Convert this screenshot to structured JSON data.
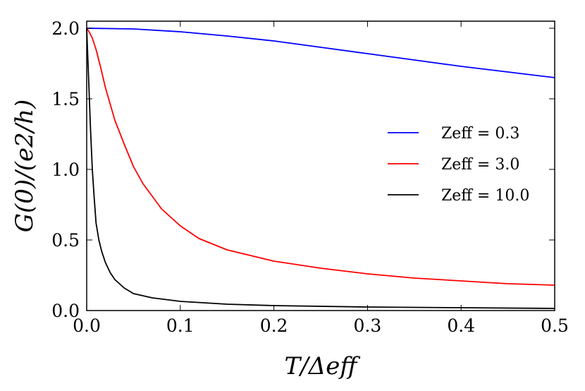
{
  "chart_data": {
    "type": "line",
    "xlabel": "T/Δeff",
    "ylabel": "G(0)/(e2/h)",
    "xlim": [
      0.0,
      0.5
    ],
    "ylim": [
      0.0,
      2.05
    ],
    "x_ticks": [
      "0.0",
      "0.1",
      "0.2",
      "0.3",
      "0.4",
      "0.5"
    ],
    "y_ticks": [
      "0.0",
      "0.5",
      "1.0",
      "1.5",
      "2.0"
    ],
    "grid": false,
    "legend_position": "center-right",
    "series": [
      {
        "name": "Zeff = 0.3",
        "color": "#0000ff",
        "points": [
          [
            0.0,
            2.0
          ],
          [
            0.05,
            1.995
          ],
          [
            0.1,
            1.975
          ],
          [
            0.15,
            1.945
          ],
          [
            0.2,
            1.91
          ],
          [
            0.25,
            1.865
          ],
          [
            0.3,
            1.82
          ],
          [
            0.35,
            1.775
          ],
          [
            0.4,
            1.73
          ],
          [
            0.45,
            1.69
          ],
          [
            0.5,
            1.65
          ]
        ]
      },
      {
        "name": "Zeff = 3.0",
        "color": "#ff0000",
        "points": [
          [
            0.0,
            2.0
          ],
          [
            0.003,
            1.97
          ],
          [
            0.006,
            1.93
          ],
          [
            0.01,
            1.85
          ],
          [
            0.015,
            1.72
          ],
          [
            0.02,
            1.58
          ],
          [
            0.03,
            1.35
          ],
          [
            0.04,
            1.18
          ],
          [
            0.05,
            1.02
          ],
          [
            0.06,
            0.9
          ],
          [
            0.08,
            0.72
          ],
          [
            0.1,
            0.6
          ],
          [
            0.12,
            0.51
          ],
          [
            0.15,
            0.43
          ],
          [
            0.2,
            0.35
          ],
          [
            0.25,
            0.3
          ],
          [
            0.3,
            0.26
          ],
          [
            0.35,
            0.23
          ],
          [
            0.4,
            0.21
          ],
          [
            0.45,
            0.19
          ],
          [
            0.5,
            0.18
          ]
        ]
      },
      {
        "name": "Zeff = 10.0",
        "color": "#000000",
        "points": [
          [
            0.0,
            2.0
          ],
          [
            0.002,
            1.65
          ],
          [
            0.004,
            1.3
          ],
          [
            0.006,
            1.0
          ],
          [
            0.008,
            0.8
          ],
          [
            0.01,
            0.62
          ],
          [
            0.013,
            0.5
          ],
          [
            0.016,
            0.42
          ],
          [
            0.02,
            0.34
          ],
          [
            0.025,
            0.27
          ],
          [
            0.03,
            0.22
          ],
          [
            0.04,
            0.16
          ],
          [
            0.05,
            0.12
          ],
          [
            0.07,
            0.09
          ],
          [
            0.1,
            0.065
          ],
          [
            0.15,
            0.045
          ],
          [
            0.2,
            0.035
          ],
          [
            0.3,
            0.025
          ],
          [
            0.4,
            0.02
          ],
          [
            0.5,
            0.015
          ]
        ]
      }
    ]
  }
}
